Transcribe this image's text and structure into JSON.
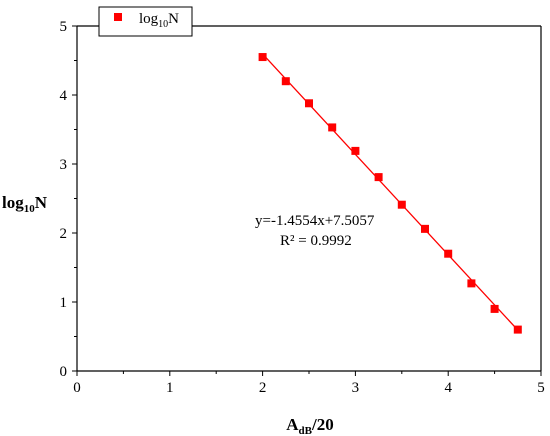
{
  "chart_data": {
    "type": "scatter",
    "title": "",
    "xlabel": {
      "main": "A",
      "sub": "dB",
      "rest": "/20"
    },
    "ylabel": {
      "main": "log",
      "sub": "10",
      "rest": "N"
    },
    "xlim": [
      0,
      5
    ],
    "ylim": [
      0,
      5
    ],
    "xticks": [
      0,
      1,
      2,
      3,
      4,
      5
    ],
    "yticks": [
      0,
      1,
      2,
      3,
      4,
      5
    ],
    "grid": false,
    "legend": {
      "placement": "top-left",
      "entries": [
        {
          "main": "log",
          "sub": "10",
          "rest": "N"
        }
      ]
    },
    "series": [
      {
        "name": "log10N",
        "color": "#ff0000",
        "marker": "square",
        "x": [
          2.0,
          2.25,
          2.5,
          2.75,
          3.0,
          3.25,
          3.5,
          3.75,
          4.0,
          4.25,
          4.5,
          4.75
        ],
        "y": [
          4.55,
          4.2,
          3.88,
          3.53,
          3.19,
          2.81,
          2.41,
          2.06,
          1.7,
          1.27,
          0.9,
          0.6
        ]
      }
    ],
    "fit": {
      "slope": -1.4554,
      "intercept": 7.5057,
      "x_range": [
        2.0,
        4.75
      ],
      "color": "#ff0000",
      "equation": "y=-1.4554x+7.5057",
      "r2": "R² = 0.9992"
    }
  }
}
